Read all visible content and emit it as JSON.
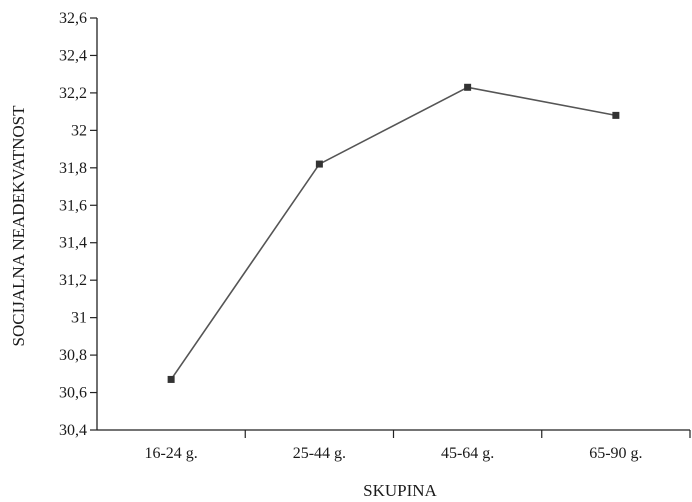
{
  "chart_data": {
    "type": "line",
    "title": "",
    "xlabel": "SKUPINA",
    "ylabel": "SOCIJALNA NEADEKVATNOST",
    "categories": [
      "16-24 g.",
      "25-44 g.",
      "45-64 g.",
      "65-90 g."
    ],
    "series": [
      {
        "values": [
          30.67,
          31.82,
          32.23,
          32.08
        ]
      }
    ],
    "ylim": [
      30.4,
      32.6
    ],
    "yticks": [
      30.4,
      30.6,
      30.8,
      31.0,
      31.2,
      31.4,
      31.6,
      31.8,
      32.0,
      32.2,
      32.4,
      32.6
    ],
    "ytick_labels": [
      "30,4",
      "30,6",
      "30,8",
      "31",
      "31,2",
      "31,4",
      "31,6",
      "31,8",
      "32",
      "32,2",
      "32,4",
      "32,6"
    ],
    "grid": false,
    "legend": "none",
    "colors": {
      "line": "#555555",
      "marker": "#333333",
      "axis": "#222222"
    }
  }
}
